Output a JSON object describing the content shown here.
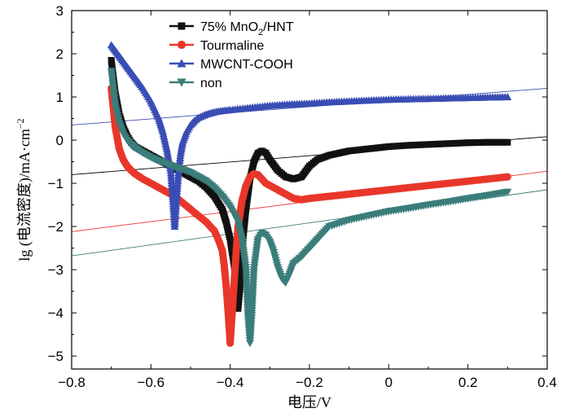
{
  "chart_data": {
    "type": "line",
    "xlabel": "电压/V",
    "ylabel": "lg (电流密度)/mA·cm",
    "ylabel_superscript": "−2",
    "xlim": [
      -0.8,
      0.4
    ],
    "ylim": [
      -5.3,
      3
    ],
    "xticks": [
      -0.8,
      -0.6,
      -0.4,
      -0.2,
      0,
      0.2,
      0.4
    ],
    "xtick_labels": [
      "−0.8",
      "−0.6",
      "−0.4",
      "−0.2",
      "0",
      "0.2",
      "0.4"
    ],
    "yticks": [
      -5,
      -4,
      -3,
      -2,
      -1,
      0,
      1,
      2,
      3
    ],
    "ytick_labels": [
      "−5",
      "−4",
      "−3",
      "−2",
      "−1",
      "0",
      "1",
      "2",
      "3"
    ],
    "grid": false,
    "legend_position": "top-left",
    "series": [
      {
        "name": "75% MnO2/HNT",
        "label_parts": [
          "75%  MnO",
          "2",
          "/HNT"
        ],
        "color": "#111111",
        "marker": "square",
        "x": [
          -0.7,
          -0.69,
          -0.68,
          -0.67,
          -0.66,
          -0.65,
          -0.64,
          -0.62,
          -0.6,
          -0.58,
          -0.56,
          -0.54,
          -0.52,
          -0.5,
          -0.48,
          -0.46,
          -0.44,
          -0.42,
          -0.41,
          -0.4,
          -0.39,
          -0.385,
          -0.38,
          -0.375,
          -0.37,
          -0.36,
          -0.35,
          -0.34,
          -0.33,
          -0.32,
          -0.31,
          -0.3,
          -0.28,
          -0.26,
          -0.24,
          -0.22,
          -0.2,
          -0.18,
          -0.15,
          -0.1,
          -0.05,
          0.0,
          0.05,
          0.1,
          0.15,
          0.2,
          0.25,
          0.3
        ],
        "y": [
          1.85,
          1.1,
          0.6,
          0.3,
          0.1,
          -0.05,
          -0.15,
          -0.25,
          -0.35,
          -0.45,
          -0.55,
          -0.65,
          -0.75,
          -0.85,
          -0.95,
          -1.1,
          -1.3,
          -1.6,
          -1.9,
          -2.3,
          -2.9,
          -3.4,
          -3.9,
          -3.4,
          -2.5,
          -1.6,
          -0.9,
          -0.5,
          -0.3,
          -0.25,
          -0.3,
          -0.45,
          -0.7,
          -0.85,
          -0.9,
          -0.85,
          -0.6,
          -0.45,
          -0.35,
          -0.25,
          -0.2,
          -0.15,
          -0.12,
          -0.1,
          -0.08,
          -0.06,
          -0.05,
          -0.05
        ]
      },
      {
        "name": "Tourmaline",
        "color": "#e8372a",
        "marker": "circle",
        "x": [
          -0.7,
          -0.69,
          -0.68,
          -0.67,
          -0.66,
          -0.65,
          -0.64,
          -0.62,
          -0.6,
          -0.58,
          -0.56,
          -0.54,
          -0.52,
          -0.5,
          -0.48,
          -0.46,
          -0.44,
          -0.43,
          -0.42,
          -0.415,
          -0.41,
          -0.405,
          -0.4,
          -0.395,
          -0.39,
          -0.385,
          -0.38,
          -0.37,
          -0.36,
          -0.35,
          -0.34,
          -0.33,
          -0.32,
          -0.31,
          -0.3,
          -0.28,
          -0.26,
          -0.24,
          -0.22,
          -0.2,
          -0.15,
          -0.1,
          -0.05,
          0.0,
          0.05,
          0.1,
          0.15,
          0.2,
          0.25,
          0.3
        ],
        "y": [
          1.2,
          0.3,
          -0.2,
          -0.45,
          -0.6,
          -0.7,
          -0.78,
          -0.9,
          -1.0,
          -1.1,
          -1.2,
          -1.3,
          -1.45,
          -1.6,
          -1.75,
          -1.9,
          -2.1,
          -2.3,
          -2.55,
          -2.9,
          -3.4,
          -4.0,
          -4.7,
          -4.0,
          -3.3,
          -2.6,
          -2.0,
          -1.4,
          -1.05,
          -0.85,
          -0.78,
          -0.8,
          -0.9,
          -1.0,
          -1.05,
          -1.15,
          -1.25,
          -1.35,
          -1.38,
          -1.35,
          -1.3,
          -1.25,
          -1.2,
          -1.15,
          -1.1,
          -1.05,
          -1.0,
          -0.95,
          -0.9,
          -0.85
        ]
      },
      {
        "name": "MWCNT-COOH",
        "color": "#3a4db4",
        "marker": "triangle-up",
        "x": [
          -0.7,
          -0.68,
          -0.66,
          -0.64,
          -0.62,
          -0.6,
          -0.59,
          -0.58,
          -0.57,
          -0.56,
          -0.55,
          -0.545,
          -0.54,
          -0.535,
          -0.53,
          -0.525,
          -0.52,
          -0.51,
          -0.5,
          -0.49,
          -0.48,
          -0.46,
          -0.44,
          -0.42,
          -0.4,
          -0.35,
          -0.3,
          -0.25,
          -0.2,
          -0.15,
          -0.1,
          -0.05,
          0.0,
          0.05,
          0.1,
          0.15,
          0.2,
          0.25,
          0.3
        ],
        "y": [
          2.2,
          1.95,
          1.7,
          1.45,
          1.2,
          0.9,
          0.7,
          0.5,
          0.2,
          -0.2,
          -0.7,
          -1.3,
          -2.0,
          -1.3,
          -0.7,
          -0.3,
          -0.05,
          0.2,
          0.35,
          0.45,
          0.52,
          0.6,
          0.65,
          0.68,
          0.7,
          0.75,
          0.8,
          0.83,
          0.85,
          0.88,
          0.9,
          0.92,
          0.94,
          0.95,
          0.96,
          0.97,
          0.98,
          0.99,
          1.0
        ]
      },
      {
        "name": "non",
        "color": "#3a7d7a",
        "marker": "triangle-down",
        "x": [
          -0.7,
          -0.69,
          -0.68,
          -0.67,
          -0.66,
          -0.65,
          -0.64,
          -0.62,
          -0.6,
          -0.58,
          -0.56,
          -0.54,
          -0.52,
          -0.5,
          -0.48,
          -0.46,
          -0.44,
          -0.42,
          -0.4,
          -0.38,
          -0.37,
          -0.36,
          -0.355,
          -0.35,
          -0.345,
          -0.34,
          -0.33,
          -0.32,
          -0.31,
          -0.3,
          -0.29,
          -0.28,
          -0.27,
          -0.26,
          -0.25,
          -0.24,
          -0.22,
          -0.2,
          -0.18,
          -0.15,
          -0.1,
          -0.05,
          0.0,
          0.05,
          0.1,
          0.15,
          0.2,
          0.25,
          0.3
        ],
        "y": [
          1.6,
          0.8,
          0.4,
          0.15,
          0.0,
          -0.1,
          -0.18,
          -0.3,
          -0.4,
          -0.48,
          -0.55,
          -0.62,
          -0.68,
          -0.75,
          -0.85,
          -0.95,
          -1.1,
          -1.3,
          -1.55,
          -1.9,
          -2.3,
          -3.0,
          -4.1,
          -4.7,
          -4.0,
          -3.0,
          -2.3,
          -2.15,
          -2.2,
          -2.35,
          -2.6,
          -2.95,
          -3.2,
          -3.3,
          -3.1,
          -2.85,
          -2.7,
          -2.5,
          -2.3,
          -2.0,
          -1.85,
          -1.75,
          -1.65,
          -1.58,
          -1.5,
          -1.43,
          -1.35,
          -1.28,
          -1.2
        ]
      }
    ],
    "tafel_lines": [
      {
        "color": "#000000",
        "x": [
          -0.8,
          0.4
        ],
        "y": [
          -0.8,
          0.08
        ]
      },
      {
        "color": "#3a4db4",
        "x": [
          -0.8,
          0.4
        ],
        "y": [
          0.35,
          1.2
        ]
      },
      {
        "color": "#e8372a",
        "x": [
          -0.8,
          0.4
        ],
        "y": [
          -2.12,
          -0.72
        ]
      },
      {
        "color": "#3a7d7a",
        "x": [
          -0.8,
          0.4
        ],
        "y": [
          -2.68,
          -1.15
        ]
      }
    ]
  }
}
